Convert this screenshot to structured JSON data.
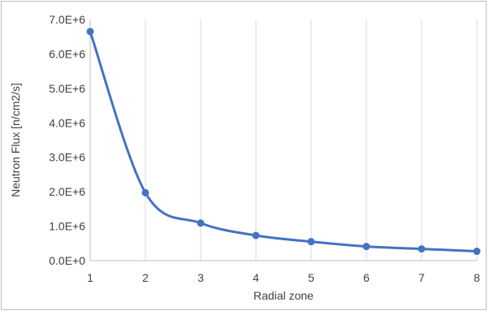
{
  "chart_data": {
    "type": "line",
    "smooth": true,
    "markers": true,
    "xlabel": "Radial zone",
    "ylabel": "Neutron Flux [n/cm2/s]",
    "x": [
      1,
      2,
      3,
      4,
      5,
      6,
      7,
      8
    ],
    "x_tick_labels": [
      "1",
      "2",
      "3",
      "4",
      "5",
      "6",
      "7",
      "8"
    ],
    "xlim": [
      1,
      8
    ],
    "ylim": [
      0,
      7000000
    ],
    "y_ticks": [
      0,
      1000000,
      2000000,
      3000000,
      4000000,
      5000000,
      6000000,
      7000000
    ],
    "y_tick_labels": [
      "0.0E+0",
      "1.0E+6",
      "2.0E+6",
      "3.0E+6",
      "4.0E+6",
      "5.0E+6",
      "6.0E+6",
      "7.0E+6"
    ],
    "grid": {
      "vertical": true,
      "horizontal": false
    },
    "series": [
      {
        "values": [
          6650000,
          1970000,
          1090000,
          730000,
          550000,
          410000,
          340000,
          270000
        ],
        "color": "#4472c4"
      }
    ]
  }
}
